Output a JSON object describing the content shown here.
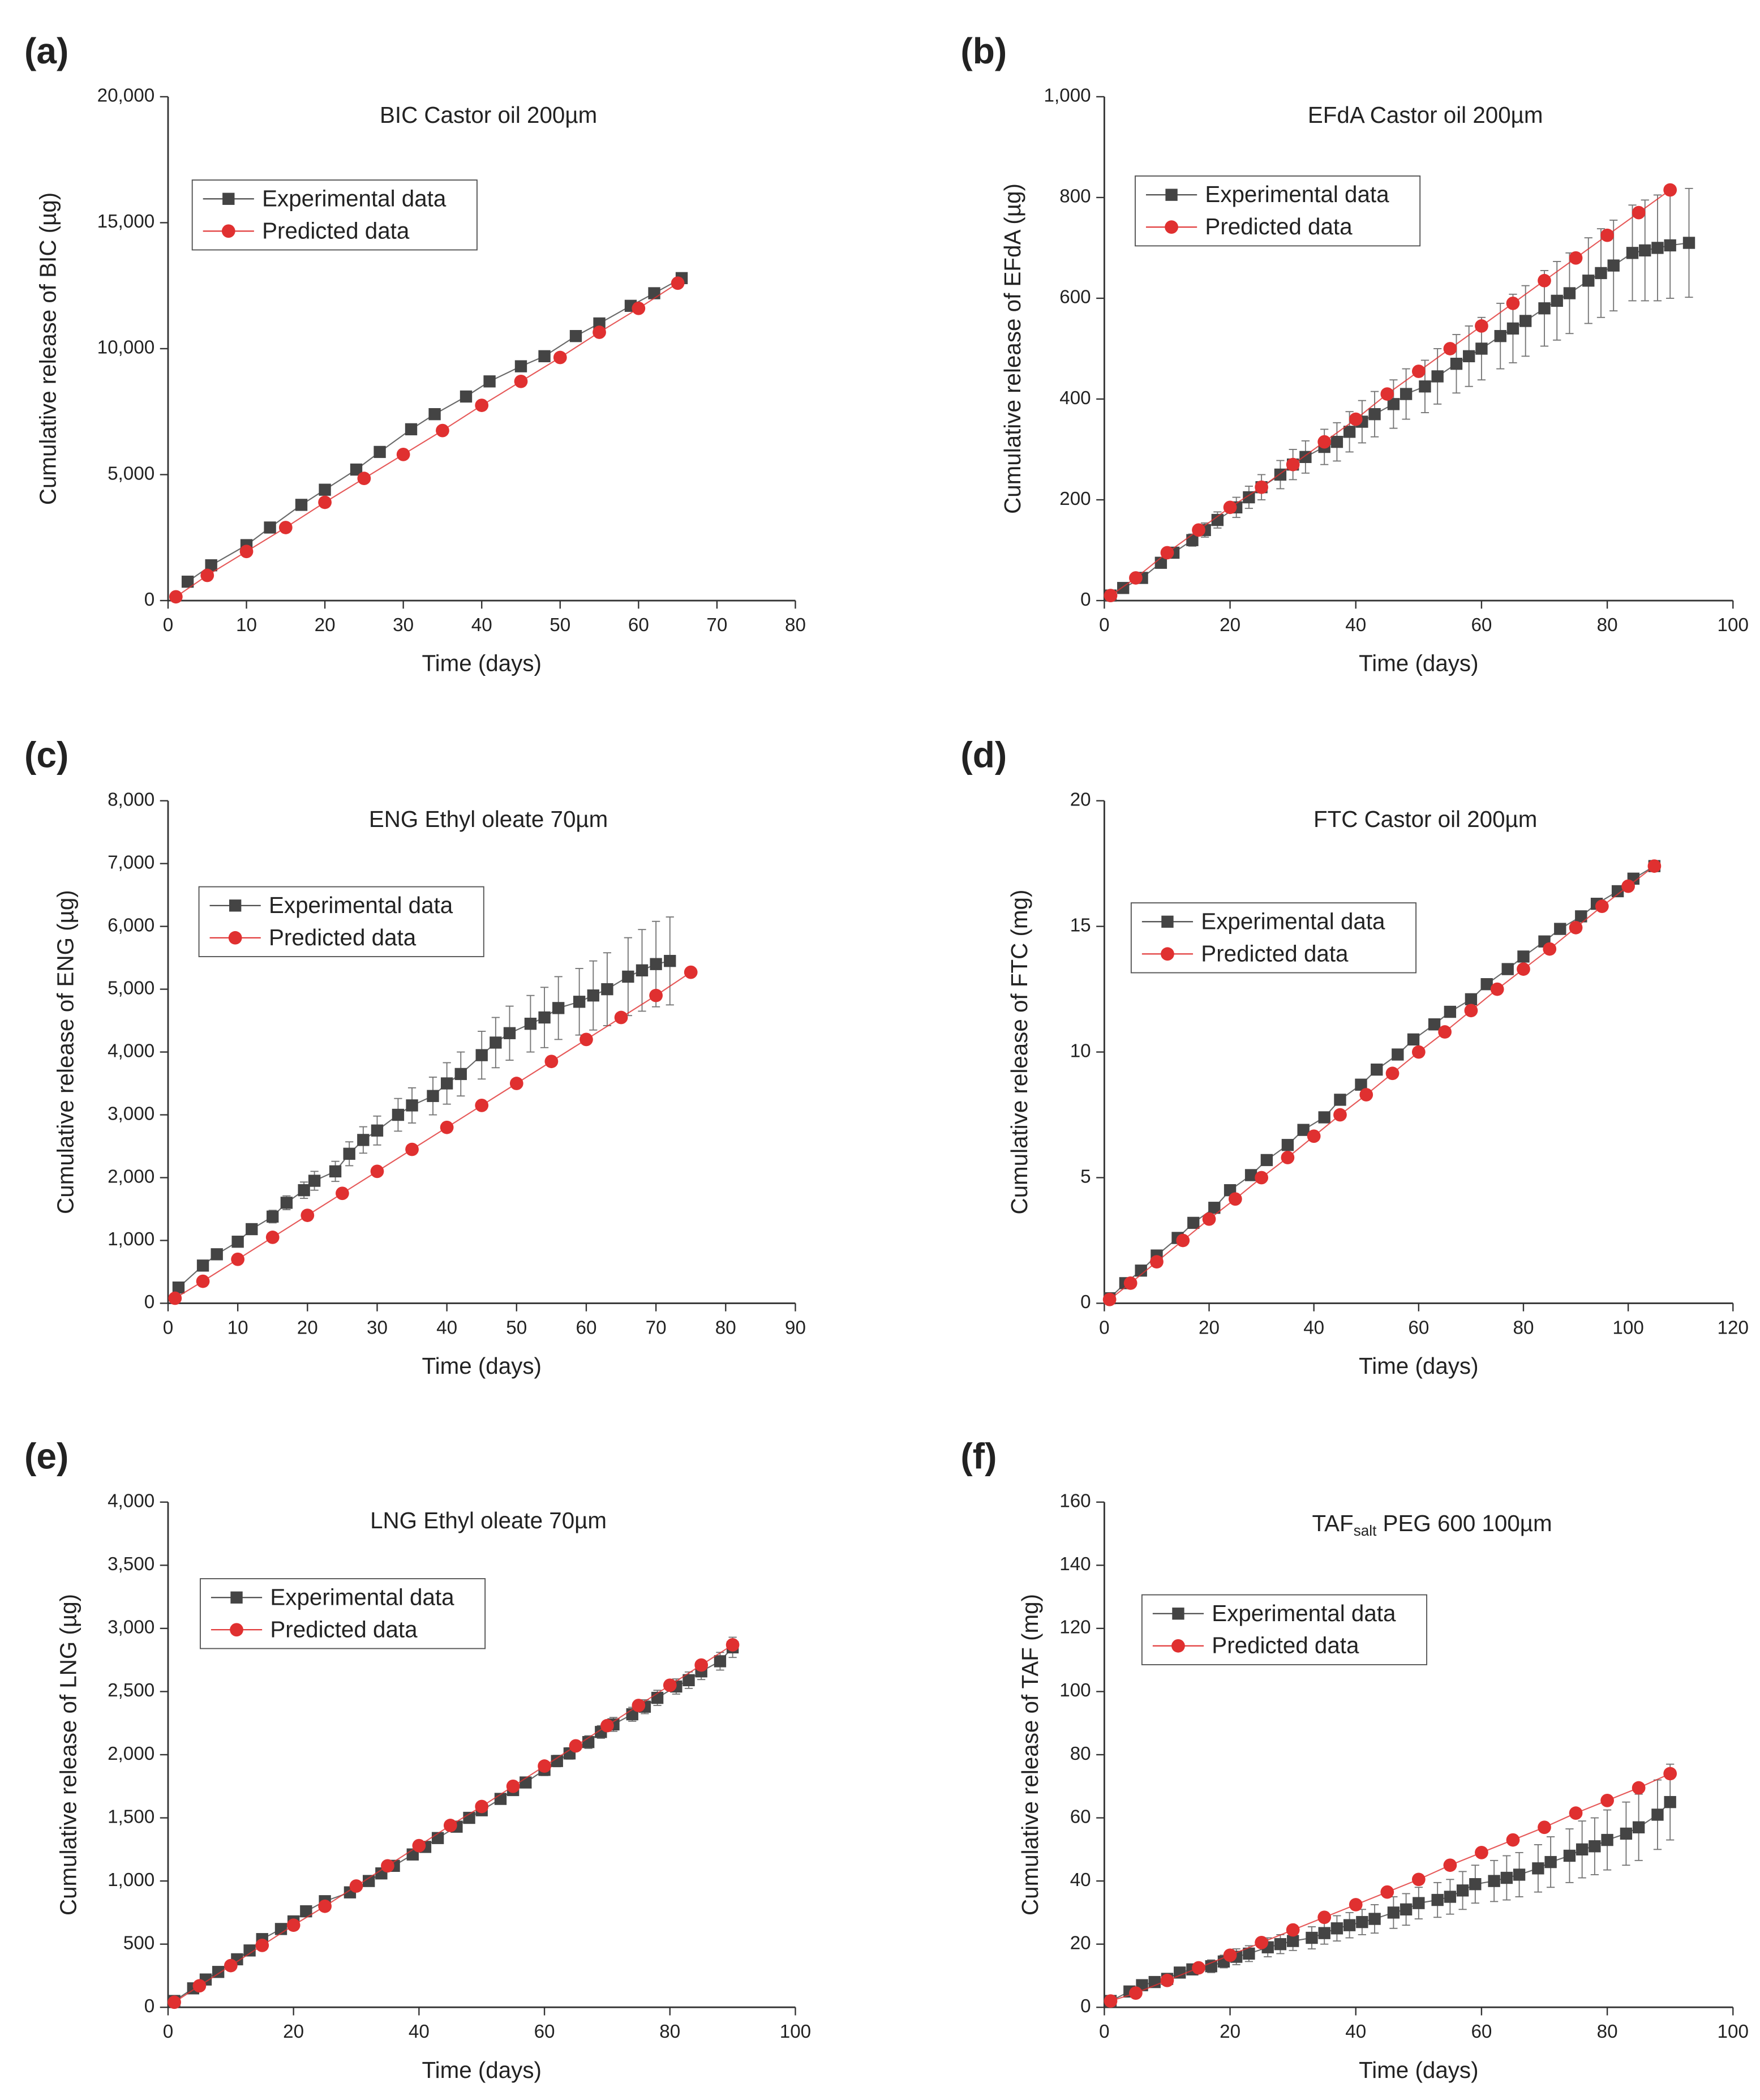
{
  "chart_data": [
    {
      "type": "line",
      "panel": "(a)",
      "title": "BIC Castor oil 200µm",
      "x_label": "Time (days)",
      "y_label": "Cumulative release of BIC (µg)",
      "xlim": [
        0,
        80
      ],
      "xticks": [
        0,
        10,
        20,
        30,
        40,
        50,
        60,
        70,
        80
      ],
      "ylim": [
        0,
        20000
      ],
      "yticks": [
        0,
        {
          "value": 5000,
          "label": "5,000"
        },
        {
          "value": 10000,
          "label": "10,000"
        },
        {
          "value": 15000,
          "label": "15,000"
        },
        {
          "value": 20000,
          "label": "20,000"
        }
      ],
      "series": [
        {
          "name": "Experimental data",
          "color": "#444444",
          "marker": "square",
          "x": [
            2.5,
            5.5,
            10,
            13,
            17,
            20,
            24,
            27,
            31,
            34,
            38,
            41,
            45,
            48,
            52,
            55,
            59,
            62,
            65.5
          ],
          "values": [
            750,
            1400,
            2200,
            2900,
            3800,
            4400,
            5200,
            5900,
            6800,
            7400,
            8100,
            8700,
            9300,
            9700,
            10500,
            11000,
            11700,
            12200,
            12800
          ]
        },
        {
          "name": "Predicted data",
          "color": "#e03030",
          "marker": "circle",
          "x": [
            1,
            5,
            10,
            15,
            20,
            25,
            30,
            35,
            40,
            45,
            50,
            55,
            60,
            65
          ],
          "values": [
            150,
            1000,
            1950,
            2900,
            3900,
            4850,
            5800,
            6750,
            7750,
            8700,
            9650,
            10650,
            11600,
            12600
          ]
        }
      ]
    },
    {
      "type": "line",
      "panel": "(b)",
      "title": "EFdA Castor oil 200µm",
      "x_label": "Time (days)",
      "y_label": "Cumulative release of EFdA (µg)",
      "xlim": [
        0,
        100
      ],
      "xticks": [
        0,
        20,
        40,
        60,
        80,
        100
      ],
      "ylim": [
        0,
        1000
      ],
      "yticks": [
        0,
        200,
        400,
        600,
        800,
        {
          "value": 1000,
          "label": "1,000"
        }
      ],
      "series": [
        {
          "name": "Experimental data",
          "color": "#444444",
          "marker": "square",
          "x": [
            1,
            3,
            6,
            9,
            11,
            14,
            16,
            18,
            21,
            23,
            25,
            28,
            30,
            32,
            35,
            37,
            39,
            41,
            43,
            46,
            48,
            51,
            53,
            56,
            58,
            60,
            63,
            65,
            67,
            70,
            72,
            74,
            77,
            79,
            81,
            84,
            86,
            88,
            90,
            93
          ],
          "values": [
            10,
            25,
            45,
            75,
            95,
            120,
            140,
            160,
            185,
            205,
            225,
            250,
            270,
            285,
            305,
            315,
            335,
            355,
            370,
            390,
            410,
            425,
            445,
            470,
            485,
            500,
            525,
            540,
            555,
            580,
            595,
            610,
            635,
            650,
            665,
            690,
            695,
            700,
            705,
            710
          ],
          "errors": [
            2,
            3,
            5,
            8,
            10,
            12,
            14,
            16,
            20,
            22,
            25,
            28,
            30,
            32,
            35,
            38,
            40,
            42,
            45,
            48,
            50,
            52,
            55,
            58,
            60,
            62,
            65,
            68,
            70,
            75,
            78,
            80,
            85,
            88,
            90,
            95,
            100,
            105,
            105,
            108
          ]
        },
        {
          "name": "Predicted data",
          "color": "#e03030",
          "marker": "circle",
          "x": [
            1,
            5,
            10,
            15,
            20,
            25,
            30,
            35,
            40,
            45,
            50,
            55,
            60,
            65,
            70,
            75,
            80,
            85,
            90
          ],
          "values": [
            10,
            45,
            95,
            140,
            185,
            225,
            270,
            315,
            360,
            410,
            455,
            500,
            545,
            590,
            635,
            680,
            725,
            770,
            815
          ]
        }
      ]
    },
    {
      "type": "line",
      "panel": "(c)",
      "title": "ENG Ethyl oleate 70µm",
      "x_label": "Time (days)",
      "y_label": "Cumulative release of ENG (µg)",
      "xlim": [
        0,
        90
      ],
      "xticks": [
        0,
        10,
        20,
        30,
        40,
        50,
        60,
        70,
        80,
        90
      ],
      "ylim": [
        0,
        8000
      ],
      "yticks": [
        0,
        {
          "value": 1000,
          "label": "1,000"
        },
        {
          "value": 2000,
          "label": "2,000"
        },
        {
          "value": 3000,
          "label": "3,000"
        },
        {
          "value": 4000,
          "label": "4,000"
        },
        {
          "value": 5000,
          "label": "5,000"
        },
        {
          "value": 6000,
          "label": "6,000"
        },
        {
          "value": 7000,
          "label": "7,000"
        },
        {
          "value": 8000,
          "label": "8,000"
        }
      ],
      "series": [
        {
          "name": "Experimental data",
          "color": "#444444",
          "marker": "square",
          "x": [
            1.5,
            5,
            7,
            10,
            12,
            15,
            17,
            19.5,
            21,
            24,
            26,
            28,
            30,
            33,
            35,
            38,
            40,
            42,
            45,
            47,
            49,
            52,
            54,
            56,
            59,
            61,
            63,
            66,
            68,
            70,
            72
          ],
          "values": [
            250,
            600,
            780,
            980,
            1180,
            1380,
            1600,
            1800,
            1950,
            2100,
            2380,
            2600,
            2750,
            3000,
            3150,
            3300,
            3500,
            3650,
            3950,
            4150,
            4300,
            4450,
            4550,
            4700,
            4800,
            4900,
            5000,
            5200,
            5300,
            5400,
            5450
          ],
          "errors": [
            20,
            40,
            50,
            70,
            80,
            100,
            110,
            130,
            150,
            160,
            190,
            210,
            230,
            260,
            280,
            300,
            330,
            350,
            380,
            400,
            430,
            450,
            480,
            500,
            530,
            550,
            580,
            620,
            650,
            680,
            700
          ]
        },
        {
          "name": "Predicted data",
          "color": "#e03030",
          "marker": "circle",
          "x": [
            1,
            5,
            10,
            15,
            20,
            25,
            30,
            35,
            40,
            45,
            50,
            55,
            60,
            65,
            70,
            75
          ],
          "values": [
            80,
            350,
            700,
            1050,
            1400,
            1750,
            2100,
            2450,
            2800,
            3150,
            3500,
            3850,
            4200,
            4550,
            4900,
            5270
          ]
        }
      ]
    },
    {
      "type": "line",
      "panel": "(d)",
      "title": "FTC Castor oil 200µm",
      "x_label": "Time (days)",
      "y_label": "Cumulative release of FTC (mg)",
      "xlim": [
        0,
        120
      ],
      "xticks": [
        0,
        20,
        40,
        60,
        80,
        100,
        120
      ],
      "ylim": [
        0,
        20
      ],
      "yticks": [
        0,
        5,
        10,
        15,
        20
      ],
      "series": [
        {
          "name": "Experimental data",
          "color": "#444444",
          "marker": "square",
          "x": [
            1,
            4,
            7,
            10,
            14,
            17,
            21,
            24,
            28,
            31,
            35,
            38,
            42,
            45,
            49,
            52,
            56,
            59,
            63,
            66,
            70,
            73,
            77,
            80,
            84,
            87,
            91,
            94,
            98,
            101,
            105
          ],
          "values": [
            0.2,
            0.8,
            1.3,
            1.9,
            2.6,
            3.2,
            3.8,
            4.5,
            5.1,
            5.7,
            6.3,
            6.9,
            7.4,
            8.1,
            8.7,
            9.3,
            9.9,
            10.5,
            11.1,
            11.6,
            12.1,
            12.7,
            13.3,
            13.8,
            14.4,
            14.9,
            15.4,
            15.9,
            16.4,
            16.9,
            17.4
          ]
        },
        {
          "name": "Predicted data",
          "color": "#e03030",
          "marker": "circle",
          "x": [
            1,
            5,
            10,
            15,
            20,
            25,
            30,
            35,
            40,
            45,
            50,
            55,
            60,
            65,
            70,
            75,
            80,
            85,
            90,
            95,
            100,
            105
          ],
          "values": [
            0.15,
            0.8,
            1.65,
            2.5,
            3.35,
            4.15,
            5.0,
            5.8,
            6.65,
            7.5,
            8.3,
            9.15,
            10.0,
            10.8,
            11.65,
            12.5,
            13.3,
            14.1,
            14.95,
            15.8,
            16.6,
            17.4
          ]
        }
      ]
    },
    {
      "type": "line",
      "panel": "(e)",
      "title": "LNG Ethyl oleate 70µm",
      "x_label": "Time (days)",
      "y_label": "Cumulative release of LNG (µg)",
      "xlim": [
        0,
        100
      ],
      "xticks": [
        0,
        20,
        40,
        60,
        80,
        100
      ],
      "ylim": [
        0,
        4000
      ],
      "yticks": [
        0,
        500,
        {
          "value": 1000,
          "label": "1,000"
        },
        {
          "value": 1500,
          "label": "1,500"
        },
        {
          "value": 2000,
          "label": "2,000"
        },
        {
          "value": 2500,
          "label": "2,500"
        },
        {
          "value": 3000,
          "label": "3,000"
        },
        {
          "value": 3500,
          "label": "3,500"
        },
        {
          "value": 4000,
          "label": "4,000"
        }
      ],
      "series": [
        {
          "name": "Experimental data",
          "color": "#444444",
          "marker": "square",
          "x": [
            1,
            4,
            6,
            8,
            11,
            13,
            15,
            18,
            20,
            22,
            25,
            29,
            32,
            34,
            36,
            39,
            41,
            43,
            46,
            48,
            50,
            53,
            55,
            57,
            60,
            62,
            64,
            67,
            69,
            71,
            74,
            76,
            78,
            81,
            83,
            85,
            88,
            90
          ],
          "values": [
            50,
            150,
            220,
            280,
            380,
            450,
            540,
            620,
            680,
            760,
            840,
            910,
            1000,
            1060,
            1120,
            1210,
            1270,
            1340,
            1430,
            1500,
            1560,
            1650,
            1720,
            1780,
            1880,
            1950,
            2010,
            2100,
            2180,
            2240,
            2320,
            2380,
            2450,
            2540,
            2590,
            2660,
            2740,
            2850
          ],
          "errors": [
            10,
            10,
            10,
            10,
            15,
            15,
            15,
            20,
            20,
            20,
            20,
            25,
            25,
            25,
            25,
            30,
            30,
            30,
            35,
            35,
            35,
            40,
            40,
            40,
            45,
            45,
            45,
            50,
            50,
            55,
            55,
            55,
            60,
            60,
            65,
            65,
            70,
            80
          ]
        },
        {
          "name": "Predicted data",
          "color": "#e03030",
          "marker": "circle",
          "x": [
            1,
            5,
            10,
            15,
            20,
            25,
            30,
            35,
            40,
            45,
            50,
            55,
            60,
            65,
            70,
            75,
            80,
            85,
            90
          ],
          "values": [
            40,
            170,
            330,
            490,
            650,
            800,
            960,
            1120,
            1280,
            1440,
            1590,
            1750,
            1910,
            2070,
            2230,
            2390,
            2550,
            2710,
            2870
          ]
        }
      ]
    },
    {
      "type": "line",
      "panel": "(f)",
      "title": {
        "main": "TAF",
        "sub": "salt",
        "rest": " PEG 600 100µm"
      },
      "x_label": "Time (days)",
      "y_label": "Cumulative release of TAF (mg)",
      "xlim": [
        0,
        100
      ],
      "xticks": [
        0,
        20,
        40,
        60,
        80,
        100
      ],
      "ylim": [
        0,
        160
      ],
      "yticks": [
        0,
        20,
        40,
        60,
        80,
        100,
        120,
        140,
        160
      ],
      "series": [
        {
          "name": "Experimental data",
          "color": "#444444",
          "marker": "square",
          "x": [
            1,
            4,
            6,
            8,
            10,
            12,
            14,
            17,
            19,
            21,
            23,
            26,
            28,
            30,
            33,
            35,
            37,
            39,
            41,
            43,
            46,
            48,
            50,
            53,
            55,
            57,
            59,
            62,
            64,
            66,
            69,
            71,
            74,
            76,
            78,
            80,
            83,
            85,
            88,
            90
          ],
          "values": [
            2,
            5,
            7,
            8,
            9,
            11,
            12,
            13,
            14.5,
            16,
            17,
            19,
            20,
            21,
            22,
            23.5,
            25,
            26,
            27,
            28,
            30,
            31,
            33,
            34,
            35,
            37,
            39,
            40,
            41,
            42,
            44,
            46,
            48,
            50,
            51,
            53,
            55,
            57,
            61,
            65
          ],
          "errors": [
            1,
            1,
            1,
            1,
            1,
            1.5,
            1.5,
            2,
            2,
            2.5,
            2.5,
            3,
            3,
            3,
            3.5,
            3.5,
            4,
            4,
            4,
            4.5,
            5,
            5,
            5,
            5.5,
            5.5,
            6,
            6,
            6.5,
            7,
            7,
            7.5,
            8,
            8.5,
            9,
            9,
            9.5,
            10,
            10.5,
            11,
            12
          ]
        },
        {
          "name": "Predicted data",
          "color": "#e03030",
          "marker": "circle",
          "x": [
            1,
            5,
            10,
            15,
            20,
            25,
            30,
            35,
            40,
            45,
            50,
            55,
            60,
            65,
            70,
            75,
            80,
            85,
            90
          ],
          "values": [
            2,
            4.5,
            8.5,
            12.5,
            16.5,
            20.5,
            24.5,
            28.5,
            32.5,
            36.5,
            40.5,
            45,
            49,
            53,
            57,
            61.5,
            65.5,
            69.5,
            74
          ]
        }
      ]
    }
  ]
}
